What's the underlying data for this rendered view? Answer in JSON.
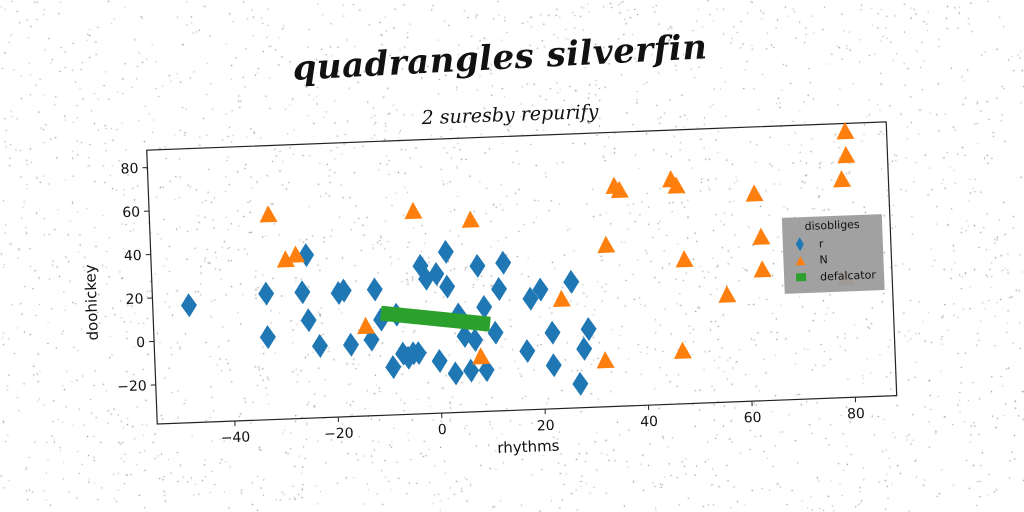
{
  "title": "quadrangles silverfin",
  "subtitle": "2 suresby repurify",
  "chart_data": {
    "type": "scatter",
    "title": "quadrangles silverfin",
    "subtitle": "2 suresby repurify",
    "xlabel": "rhythms",
    "ylabel": "doohickey",
    "xlim": [
      -55,
      88
    ],
    "ylim": [
      -38,
      88
    ],
    "xticks": [
      "−40",
      "−20",
      "0",
      "20",
      "40",
      "60",
      "80"
    ],
    "xtick_values": [
      -40,
      -20,
      0,
      20,
      40,
      60,
      80
    ],
    "yticks": [
      "−20",
      "0",
      "20",
      "40",
      "60",
      "80"
    ],
    "ytick_values": [
      -20,
      0,
      20,
      40,
      60,
      80
    ],
    "grid": false,
    "legend_title": "disobliges",
    "legend_position": "right",
    "colors": {
      "r": "#1f77b4",
      "N": "#ff7f0e",
      "defalcator": "#2ca02c"
    },
    "series": [
      {
        "name": "r",
        "marker": "diamond",
        "points": [
          [
            -48,
            16
          ],
          [
            -33,
            20
          ],
          [
            -33,
            0
          ],
          [
            -26,
            20
          ],
          [
            -25,
            37
          ],
          [
            -25,
            7
          ],
          [
            -23,
            -5
          ],
          [
            -19,
            19
          ],
          [
            -18,
            20
          ],
          [
            -17,
            -5
          ],
          [
            -12,
            20
          ],
          [
            -13,
            -3
          ],
          [
            -11,
            6
          ],
          [
            -9,
            -16
          ],
          [
            -8,
            8
          ],
          [
            -7,
            -10
          ],
          [
            -6,
            -12
          ],
          [
            -5,
            -10
          ],
          [
            -4,
            -10
          ],
          [
            -3,
            30
          ],
          [
            -2,
            24
          ],
          [
            0,
            -14
          ],
          [
            0,
            26
          ],
          [
            2,
            20
          ],
          [
            2,
            36
          ],
          [
            3,
            -20
          ],
          [
            4,
            7
          ],
          [
            5,
            -3
          ],
          [
            6,
            -19
          ],
          [
            7,
            -5
          ],
          [
            8,
            29
          ],
          [
            9,
            10
          ],
          [
            9,
            -19
          ],
          [
            11,
            -2
          ],
          [
            12,
            18
          ],
          [
            13,
            30
          ],
          [
            17,
            -11
          ],
          [
            18,
            13
          ],
          [
            20,
            17
          ],
          [
            22,
            -18
          ],
          [
            22,
            -3
          ],
          [
            26,
            20
          ],
          [
            27,
            -27
          ],
          [
            28,
            -11
          ],
          [
            29,
            -2
          ]
        ]
      },
      {
        "name": "N",
        "marker": "triangle",
        "points": [
          [
            -32,
            56
          ],
          [
            -29,
            35
          ],
          [
            -27,
            37
          ],
          [
            -14,
            3
          ],
          [
            -4,
            55
          ],
          [
            7,
            50
          ],
          [
            8,
            -13
          ],
          [
            24,
            12
          ],
          [
            32,
            -17
          ],
          [
            33,
            36
          ],
          [
            35,
            63
          ],
          [
            36,
            61
          ],
          [
            46,
            65
          ],
          [
            47,
            62
          ],
          [
            47,
            -14
          ],
          [
            48,
            28
          ],
          [
            56,
            11
          ],
          [
            62,
            57
          ],
          [
            63,
            37
          ],
          [
            63,
            22
          ],
          [
            79,
            62
          ],
          [
            80,
            73
          ],
          [
            80,
            84
          ],
          [
            79,
            17
          ]
        ]
      },
      {
        "name": "defalcator",
        "marker": "line",
        "points": [
          [
            -11,
            9
          ],
          [
            10,
            2
          ]
        ]
      }
    ]
  }
}
